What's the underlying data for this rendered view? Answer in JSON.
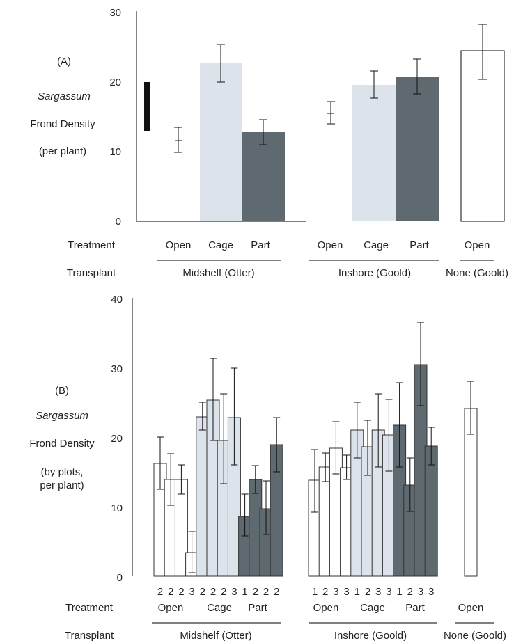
{
  "colors": {
    "open": "#ffffff",
    "cage": "#dde3ea",
    "part": "#5f6a70",
    "outline": "#333333",
    "mark": "#111111"
  },
  "chart_data": [
    {
      "panel": "(A)",
      "type": "bar",
      "ylabel_lines": [
        "Sargassum",
        "Frond Density",
        "(per plant)"
      ],
      "ylim": [
        0,
        30
      ],
      "yticks": [
        "0",
        "10",
        "20",
        "30"
      ],
      "grid": false,
      "row_labels": [
        "Treatment",
        "Transplant"
      ],
      "groups": [
        {
          "label": "Midshelf (Otter)",
          "treatments": [
            "Open",
            "Cage",
            "Part"
          ]
        },
        {
          "label": "Inshore (Goold)",
          "treatments": [
            "Open",
            "Cage",
            "Part"
          ]
        },
        {
          "label": "None (Goold)",
          "treatments": [
            "Open"
          ]
        }
      ],
      "range_bar": [
        13,
        20
      ],
      "bars": [
        {
          "group": "Midshelf (Otter)",
          "treatment": "Open",
          "value": 11.6,
          "err": [
            9.9,
            13.5
          ],
          "drawn": false
        },
        {
          "group": "Midshelf (Otter)",
          "treatment": "Cage",
          "value": 22.7,
          "err": [
            20.0,
            25.4
          ],
          "drawn": true
        },
        {
          "group": "Midshelf (Otter)",
          "treatment": "Part",
          "value": 12.8,
          "err": [
            11.0,
            14.6
          ],
          "drawn": true
        },
        {
          "group": "Inshore (Goold)",
          "treatment": "Open",
          "value": 15.5,
          "err": [
            14.0,
            17.2
          ],
          "drawn": false
        },
        {
          "group": "Inshore (Goold)",
          "treatment": "Cage",
          "value": 19.6,
          "err": [
            17.7,
            21.6
          ],
          "drawn": true
        },
        {
          "group": "Inshore (Goold)",
          "treatment": "Part",
          "value": 20.8,
          "err": [
            18.3,
            23.3
          ],
          "drawn": true
        },
        {
          "group": "None (Goold)",
          "treatment": "Open",
          "value": 24.5,
          "err": [
            20.4,
            28.3
          ],
          "drawn": true
        }
      ]
    },
    {
      "panel": "(B)",
      "type": "bar",
      "ylabel_lines": [
        "Sargassum",
        "Frond Density",
        "(by plots,",
        "per plant)"
      ],
      "ylim": [
        0,
        40
      ],
      "yticks": [
        "0",
        "10",
        "20",
        "30",
        "40"
      ],
      "grid": false,
      "row_labels": [
        "Treatment",
        "Transplant"
      ],
      "groups": [
        {
          "label": "Midshelf (Otter)",
          "treatments": [
            "Open",
            "Cage",
            "Part"
          ]
        },
        {
          "label": "Inshore (Goold)",
          "treatments": [
            "Open",
            "Cage",
            "Part"
          ]
        },
        {
          "label": "None (Goold)",
          "treatments": [
            "Open"
          ]
        }
      ],
      "plots": [
        {
          "group": "Midshelf (Otter)",
          "treatment": "Open",
          "n": "2",
          "value": 16.2,
          "err": [
            12.5,
            20.0
          ]
        },
        {
          "group": "Midshelf (Otter)",
          "treatment": "Open",
          "n": "2",
          "value": 13.9,
          "err": [
            10.2,
            17.6
          ]
        },
        {
          "group": "Midshelf (Otter)",
          "treatment": "Open",
          "n": "2",
          "value": 13.9,
          "err": [
            11.8,
            16.0
          ]
        },
        {
          "group": "Midshelf (Otter)",
          "treatment": "Open",
          "n": "3",
          "value": 3.4,
          "err": [
            0.5,
            6.4
          ]
        },
        {
          "group": "Midshelf (Otter)",
          "treatment": "Cage",
          "n": "2",
          "value": 22.9,
          "err": [
            21.0,
            25.0
          ]
        },
        {
          "group": "Midshelf (Otter)",
          "treatment": "Cage",
          "n": "2",
          "value": 25.3,
          "err": [
            19.5,
            31.3
          ]
        },
        {
          "group": "Midshelf (Otter)",
          "treatment": "Cage",
          "n": "2",
          "value": 19.5,
          "err": [
            13.3,
            26.2
          ]
        },
        {
          "group": "Midshelf (Otter)",
          "treatment": "Cage",
          "n": "3",
          "value": 22.8,
          "err": [
            16.0,
            29.9
          ]
        },
        {
          "group": "Midshelf (Otter)",
          "treatment": "Part",
          "n": "1",
          "value": 8.6,
          "err": [
            5.8,
            11.8
          ]
        },
        {
          "group": "Midshelf (Otter)",
          "treatment": "Part",
          "n": "2",
          "value": 13.9,
          "err": [
            11.9,
            15.9
          ]
        },
        {
          "group": "Midshelf (Otter)",
          "treatment": "Part",
          "n": "2",
          "value": 9.7,
          "err": [
            6.0,
            13.7
          ]
        },
        {
          "group": "Midshelf (Otter)",
          "treatment": "Part",
          "n": "2",
          "value": 18.9,
          "err": [
            15.0,
            22.8
          ]
        },
        {
          "group": "Inshore (Goold)",
          "treatment": "Open",
          "n": "1",
          "value": 13.8,
          "err": [
            9.2,
            18.2
          ]
        },
        {
          "group": "Inshore (Goold)",
          "treatment": "Open",
          "n": "2",
          "value": 15.7,
          "err": [
            13.6,
            17.7
          ]
        },
        {
          "group": "Inshore (Goold)",
          "treatment": "Open",
          "n": "3",
          "value": 18.4,
          "err": [
            14.7,
            22.2
          ]
        },
        {
          "group": "Inshore (Goold)",
          "treatment": "Open",
          "n": "3",
          "value": 15.6,
          "err": [
            13.9,
            17.4
          ]
        },
        {
          "group": "Inshore (Goold)",
          "treatment": "Cage",
          "n": "1",
          "value": 21.0,
          "err": [
            17.0,
            25.0
          ]
        },
        {
          "group": "Inshore (Goold)",
          "treatment": "Cage",
          "n": "2",
          "value": 18.6,
          "err": [
            14.5,
            22.4
          ]
        },
        {
          "group": "Inshore (Goold)",
          "treatment": "Cage",
          "n": "3",
          "value": 21.0,
          "err": [
            15.7,
            26.2
          ]
        },
        {
          "group": "Inshore (Goold)",
          "treatment": "Cage",
          "n": "3",
          "value": 20.3,
          "err": [
            15.1,
            25.4
          ]
        },
        {
          "group": "Inshore (Goold)",
          "treatment": "Part",
          "n": "1",
          "value": 21.7,
          "err": [
            15.7,
            27.8
          ]
        },
        {
          "group": "Inshore (Goold)",
          "treatment": "Part",
          "n": "2",
          "value": 13.1,
          "err": [
            9.3,
            17.0
          ]
        },
        {
          "group": "Inshore (Goold)",
          "treatment": "Part",
          "n": "3",
          "value": 30.4,
          "err": [
            24.5,
            36.5
          ]
        },
        {
          "group": "Inshore (Goold)",
          "treatment": "Part",
          "n": "3",
          "value": 18.7,
          "err": [
            16.0,
            21.4
          ]
        },
        {
          "group": "None (Goold)",
          "treatment": "Open",
          "n": "",
          "value": 24.1,
          "err": [
            20.4,
            28.0
          ]
        }
      ]
    }
  ]
}
